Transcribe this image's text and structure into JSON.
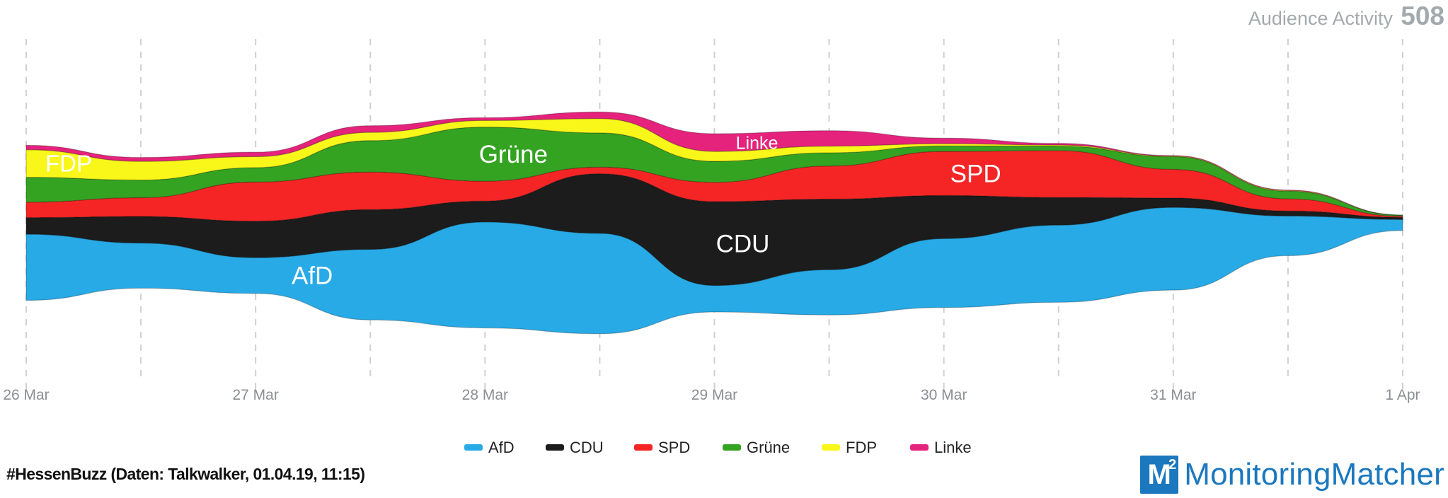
{
  "header": {
    "label": "Audience Activity",
    "value": "508"
  },
  "chart_data": {
    "type": "area",
    "subtype": "streamgraph",
    "title": "",
    "x": [
      "26 Mar",
      "26 Mar 12h",
      "27 Mar",
      "27 Mar 12h",
      "28 Mar",
      "28 Mar 12h",
      "29 Mar",
      "29 Mar 12h",
      "30 Mar",
      "30 Mar 12h",
      "31 Mar",
      "31 Mar 12h",
      "1 Apr"
    ],
    "x_tick_labels": [
      "26 Mar",
      "27 Mar",
      "28 Mar",
      "29 Mar",
      "30 Mar",
      "31 Mar",
      "1 Apr"
    ],
    "grid": "vertical dashed",
    "legend_position": "bottom",
    "series": [
      {
        "name": "AfD",
        "color": "#27aae6",
        "values": [
          120,
          82,
          65,
          128,
          192,
          182,
          48,
          82,
          125,
          140,
          150,
          72,
          20
        ]
      },
      {
        "name": "CDU",
        "color": "#1c1c1c",
        "values": [
          30,
          48,
          66,
          72,
          38,
          108,
          152,
          128,
          78,
          50,
          17,
          9,
          4
        ]
      },
      {
        "name": "SPD",
        "color": "#f52525",
        "values": [
          28,
          34,
          71,
          68,
          36,
          12,
          35,
          60,
          80,
          85,
          52,
          22,
          2
        ]
      },
      {
        "name": "Grüne",
        "color": "#34a322",
        "values": [
          45,
          32,
          26,
          57,
          98,
          62,
          38,
          24,
          10,
          8,
          23,
          14,
          2
        ]
      },
      {
        "name": "FDP",
        "color": "#f9f61a",
        "values": [
          50,
          34,
          20,
          15,
          12,
          26,
          18,
          12,
          4,
          2,
          1,
          1,
          0
        ]
      },
      {
        "name": "Linke",
        "color": "#e5237c",
        "values": [
          8,
          7,
          8,
          12,
          5,
          12,
          32,
          28,
          10,
          3,
          1,
          1,
          0
        ]
      }
    ],
    "annotations": [
      "FDP",
      "Grüne",
      "Linke",
      "SPD",
      "CDU",
      "AfD"
    ]
  },
  "legend": [
    {
      "name": "AfD",
      "color": "#27aae6"
    },
    {
      "name": "CDU",
      "color": "#1c1c1c"
    },
    {
      "name": "SPD",
      "color": "#f52525"
    },
    {
      "name": "Grüne",
      "color": "#34a322"
    },
    {
      "name": "FDP",
      "color": "#f9f61a"
    },
    {
      "name": "Linke",
      "color": "#e5237c"
    }
  ],
  "footer": {
    "note": "#HessenBuzz (Daten: Talkwalker, 01.04.19, 11:15)",
    "brand_mark": "M",
    "brand_mark_sup": "2",
    "brand_name": "MonitoringMatcher"
  }
}
